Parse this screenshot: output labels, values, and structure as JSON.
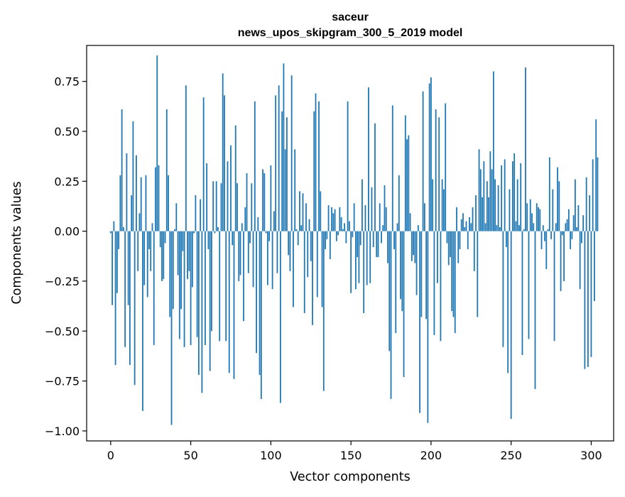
{
  "chart_data": {
    "type": "bar",
    "title": "saceur",
    "subtitle": "news_upos_skipgram_300_5_2019 model",
    "xlabel": "Vector components",
    "ylabel": "Components values",
    "xlim": [
      -15,
      314
    ],
    "ylim": [
      -1.05,
      0.93
    ],
    "xticks": [
      0,
      50,
      100,
      150,
      200,
      250,
      300
    ],
    "yticks": [
      -1.0,
      -0.75,
      -0.5,
      -0.25,
      0.0,
      0.25,
      0.5,
      0.75
    ],
    "ytick_labels": [
      "−1.00",
      "−0.75",
      "−0.50",
      "−0.25",
      "0.00",
      "0.25",
      "0.50",
      "0.75"
    ],
    "bar_color": "#1f77b4",
    "values": [
      -0.01,
      -0.37,
      0.05,
      -0.67,
      -0.31,
      -0.09,
      0.28,
      0.61,
      0.02,
      -0.58,
      0.39,
      -0.37,
      -0.67,
      0.18,
      0.55,
      -0.77,
      0.38,
      -0.2,
      0.09,
      0.27,
      -0.9,
      -0.27,
      0.28,
      -0.33,
      -0.09,
      -0.2,
      0.04,
      -0.57,
      0.32,
      0.88,
      0.33,
      -0.08,
      -0.25,
      -0.24,
      -0.06,
      0.61,
      0.28,
      -0.43,
      -0.97,
      -0.39,
      0.01,
      0.14,
      -0.22,
      -0.54,
      -0.39,
      -0.1,
      -0.58,
      0.73,
      -0.24,
      -0.2,
      -0.57,
      -0.28,
      -0.01,
      0.18,
      -0.53,
      -0.72,
      0.16,
      -0.81,
      0.67,
      -0.57,
      0.34,
      -0.09,
      -0.7,
      -0.5,
      0.25,
      -0.01,
      0.25,
      0.02,
      -0.55,
      0.24,
      0.79,
      0.68,
      -0.55,
      0.35,
      -0.71,
      0.43,
      -0.07,
      -0.74,
      0.53,
      0.24,
      -0.25,
      -0.22,
      0.04,
      -0.45,
      0.12,
      0.29,
      -0.21,
      -0.06,
      0.24,
      -0.28,
      0.65,
      -0.61,
      0.07,
      -0.72,
      -0.84,
      0.31,
      0.29,
      -0.01,
      -0.27,
      -0.05,
      0.33,
      -0.29,
      0.1,
      0.68,
      -0.21,
      0.73,
      -0.86,
      0.6,
      0.84,
      0.41,
      0.57,
      -0.12,
      -0.2,
      0.78,
      -0.38,
      0.41,
      0.01,
      -0.07,
      0.2,
      0.03,
      0.19,
      -0.41,
      0.14,
      -0.23,
      0.06,
      -0.15,
      -0.47,
      0.6,
      0.69,
      -0.33,
      0.65,
      0.2,
      -0.38,
      -0.8,
      -0.09,
      -0.04,
      0.13,
      -0.14,
      0.12,
      0.09,
      0.11,
      -0.05,
      -0.02,
      0.12,
      0.07,
      0.01,
      0.04,
      -0.06,
      0.65,
      0.05,
      -0.31,
      -0.03,
      0.14,
      -0.29,
      -0.13,
      -0.26,
      -0.07,
      0.26,
      -0.41,
      0.13,
      -0.27,
      0.72,
      -0.26,
      0.22,
      -0.08,
      0.54,
      -0.13,
      -0.13,
      0.14,
      -0.06,
      0.03,
      0.23,
      0.12,
      -0.16,
      -0.6,
      -0.84,
      0.63,
      -0.09,
      -0.51,
      0.04,
      0.28,
      -0.34,
      -0.4,
      -0.73,
      0.58,
      0.46,
      0.48,
      0.09,
      -0.15,
      -0.12,
      -0.16,
      -0.32,
      0.03,
      -0.91,
      -0.43,
      0.7,
      0.14,
      -0.44,
      -0.96,
      0.74,
      0.77,
      0.26,
      -0.52,
      0.61,
      -0.26,
      0.57,
      -0.55,
      0.26,
      0.21,
      0.64,
      -0.06,
      -0.17,
      -0.13,
      -0.4,
      -0.43,
      -0.51,
      0.12,
      -0.16,
      -0.09,
      0.06,
      0.09,
      0.02,
      0.05,
      -0.09,
      0.07,
      0.04,
      0.12,
      -0.2,
      0.18,
      -0.43,
      0.41,
      0.31,
      0.17,
      0.35,
      0.04,
      0.25,
      0.17,
      0.4,
      0.31,
      0.8,
      0.26,
      0.03,
      0.23,
      0.02,
      0.33,
      -0.58,
      0.36,
      -0.08,
      -0.71,
      0.21,
      -0.94,
      0.35,
      0.39,
      0.05,
      0.26,
      0.03,
      0.34,
      -0.62,
      0.01,
      0.82,
      0.14,
      -0.54,
      0.16,
      0.09,
      0.04,
      -0.79,
      0.14,
      0.12,
      0.11,
      -0.09,
      0.03,
      -0.05,
      -0.19,
      0.01,
      0.37,
      -0.04,
      0.21,
      -0.55,
      0.04,
      0.32,
      0.25,
      -0.3,
      -0.02,
      -0.25,
      0.04,
      0.06,
      0.11,
      -0.09,
      -0.04,
      0.08,
      0.26,
      0.02,
      0.13,
      -0.29,
      -0.06,
      0.08,
      -0.69,
      0.27,
      -0.68,
      0.18,
      -0.63,
      0.36,
      -0.35,
      0.56,
      0.37
    ]
  }
}
